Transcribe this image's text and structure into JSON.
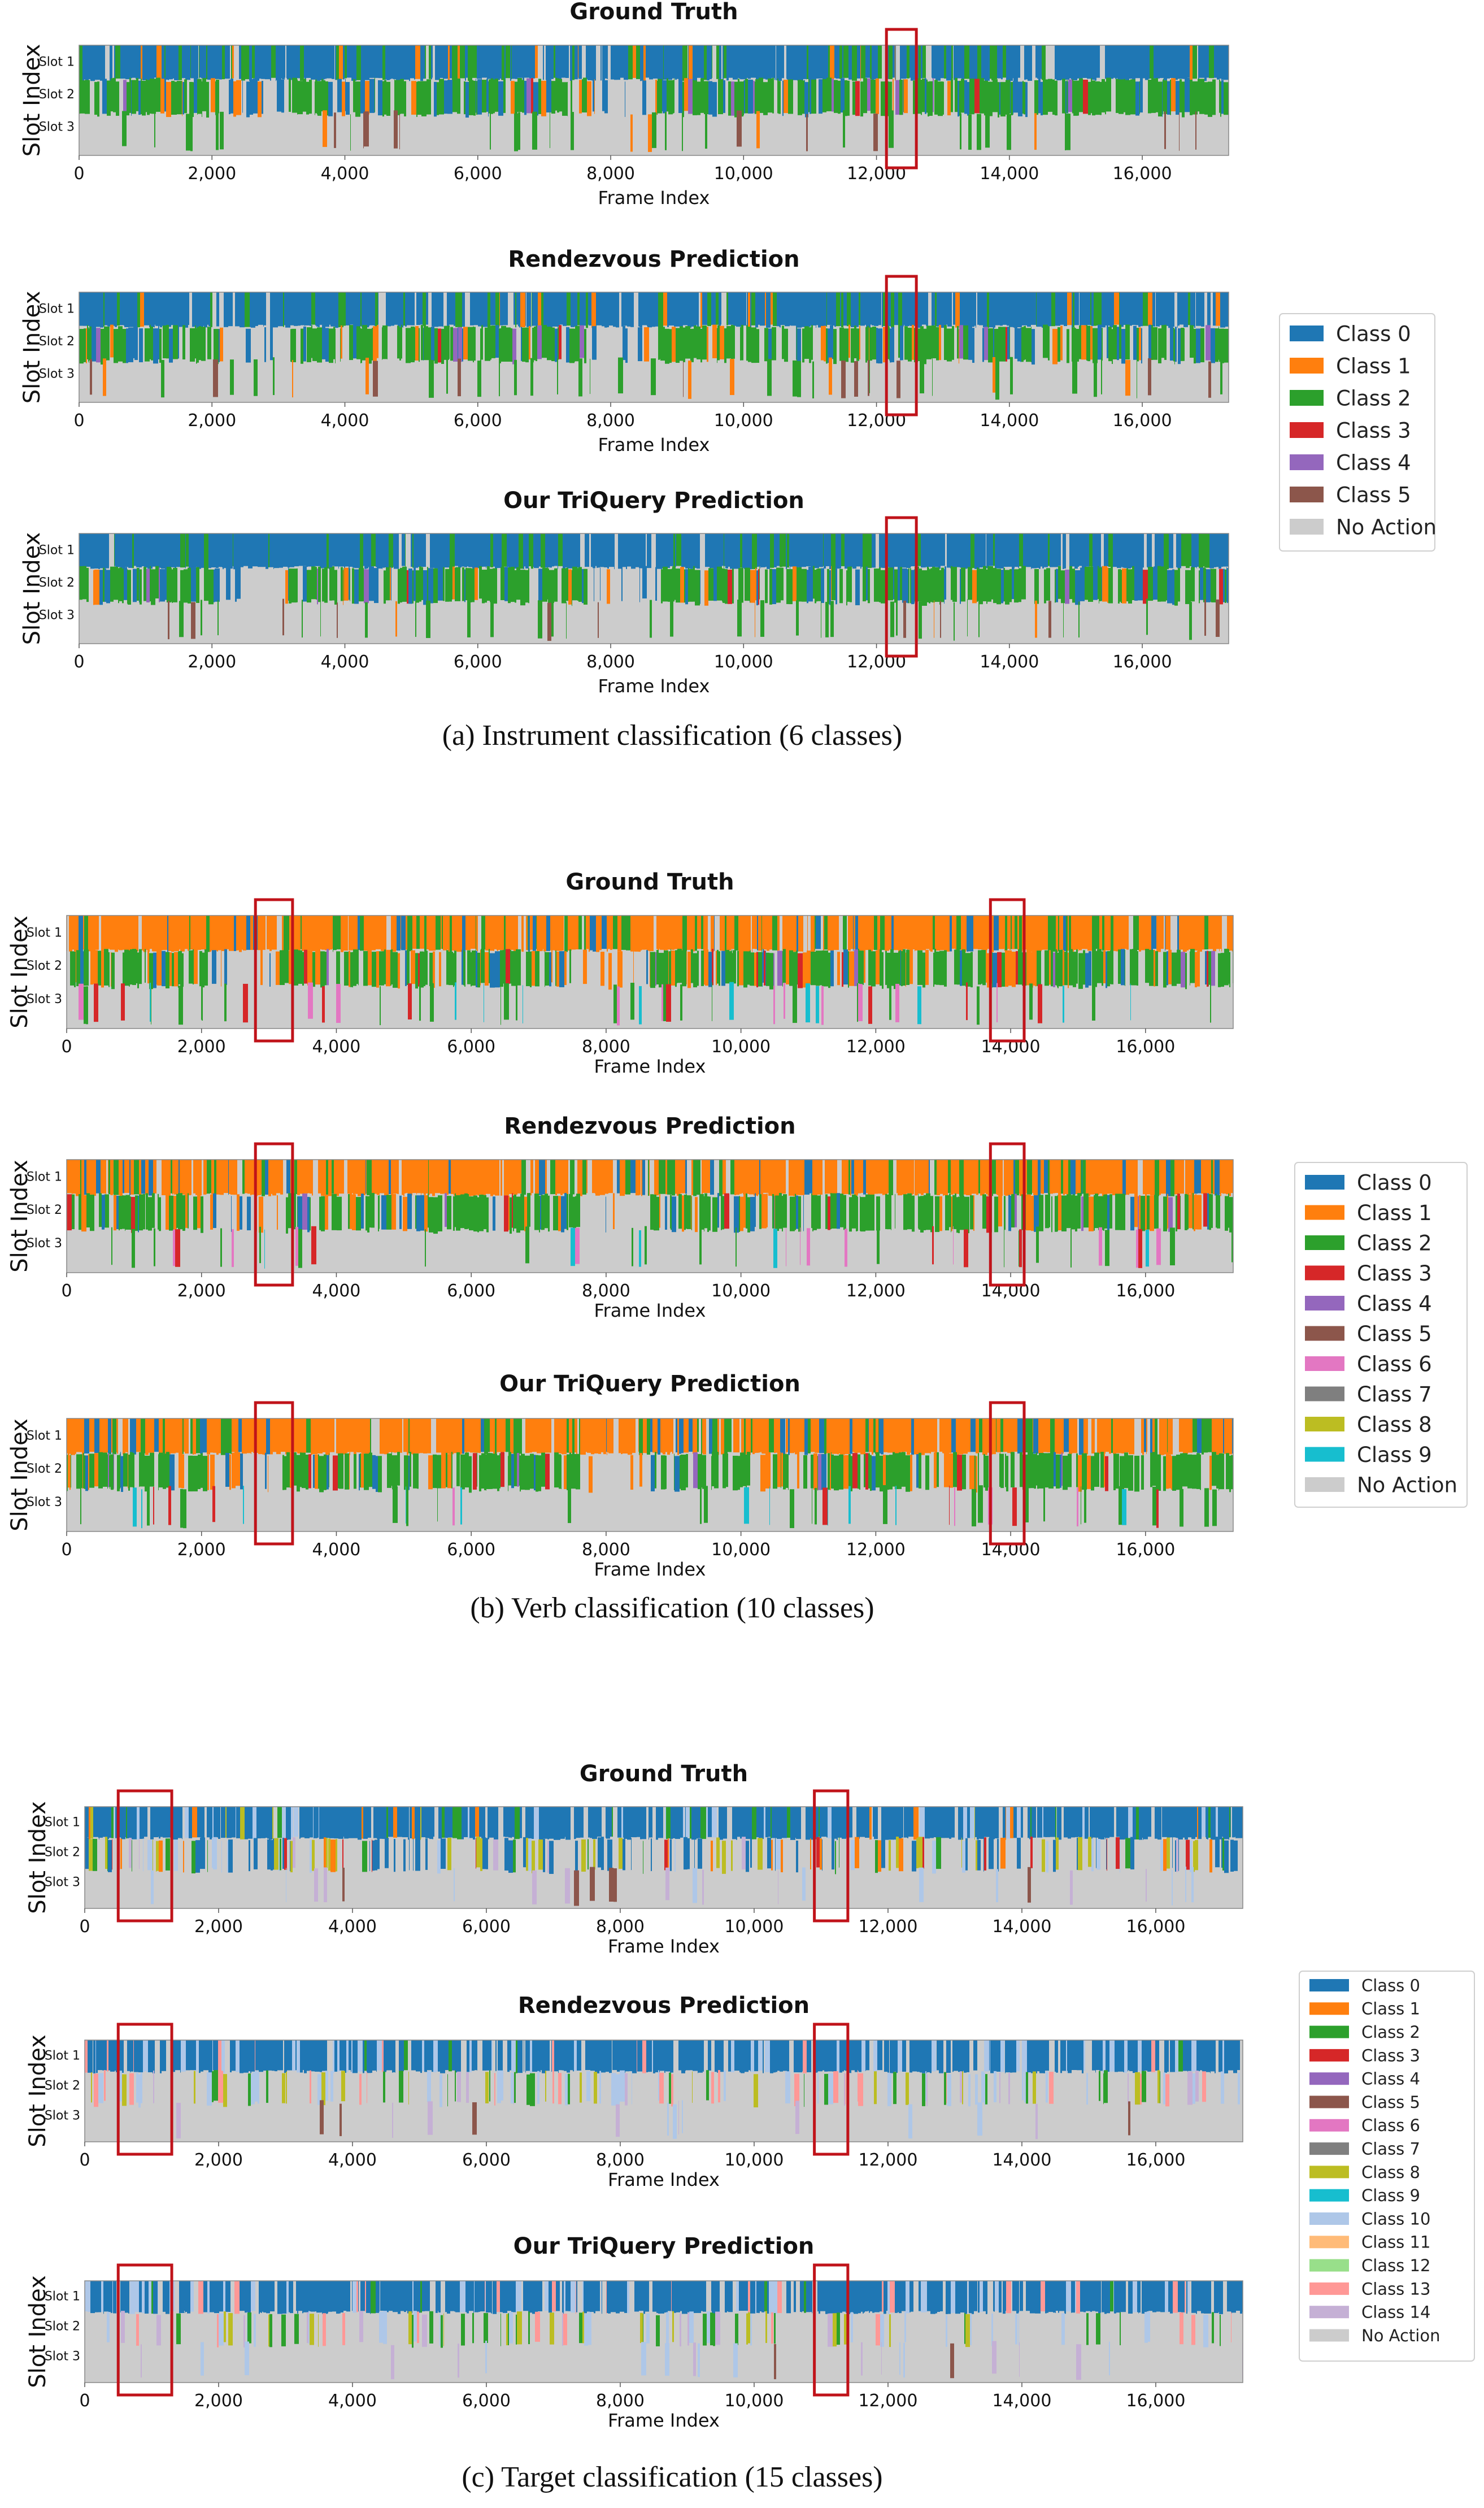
{
  "palette": {
    "class_0": "#1f77b4",
    "class_1": "#ff7f0e",
    "class_2": "#2ca02c",
    "class_3": "#d62728",
    "class_4": "#9467bd",
    "class_5": "#8c564b",
    "class_6": "#e377c2",
    "class_7": "#7f7f7f",
    "class_8": "#bcbd22",
    "class_9": "#17becf",
    "class_10": "#aec7e8",
    "class_11": "#ffbb78",
    "class_12": "#98df8a",
    "class_13": "#ff9896",
    "class_14": "#c5b0d5",
    "no_action": "#cccccc",
    "highlight": "#c0131a"
  },
  "chart_data": [
    {
      "type": "heatmap",
      "group": "instrument",
      "caption": "(a) Instrument classification (6 classes)",
      "legend": [
        "Class 0",
        "Class 1",
        "Class 2",
        "Class 3",
        "Class 4",
        "Class 5",
        "No Action"
      ],
      "legend_placement": "right",
      "xlabel": "Frame Index",
      "ylabel": "Slot Index",
      "y_categories": [
        "Slot 1",
        "Slot 2",
        "Slot 3"
      ],
      "x_range": [
        0,
        17300
      ],
      "x_ticks": [
        "0",
        "2,000",
        "4,000",
        "6,000",
        "8,000",
        "10,000",
        "12,000",
        "14,000",
        "16,000"
      ],
      "highlight_frames": [
        [
          12150,
          12600
        ]
      ],
      "panels": [
        {
          "title": "Ground Truth",
          "profile": "gt"
        },
        {
          "title": "Rendezvous Prediction",
          "profile": "pred"
        },
        {
          "title": "Our TriQuery Prediction",
          "profile": "ours"
        }
      ]
    },
    {
      "type": "heatmap",
      "group": "verb",
      "caption": "(b) Verb classification (10 classes)",
      "legend": [
        "Class 0",
        "Class 1",
        "Class 2",
        "Class 3",
        "Class 4",
        "Class 5",
        "Class 6",
        "Class 7",
        "Class 8",
        "Class 9",
        "No Action"
      ],
      "legend_placement": "right",
      "xlabel": "Frame Index",
      "ylabel": "Slot Index",
      "y_categories": [
        "Slot 1",
        "Slot 2",
        "Slot 3"
      ],
      "x_range": [
        0,
        17300
      ],
      "x_ticks": [
        "0",
        "2,000",
        "4,000",
        "6,000",
        "8,000",
        "10,000",
        "12,000",
        "14,000",
        "16,000"
      ],
      "highlight_frames": [
        [
          2800,
          3350
        ],
        [
          13700,
          14200
        ]
      ],
      "panels": [
        {
          "title": "Ground Truth",
          "profile": "gt"
        },
        {
          "title": "Rendezvous Prediction",
          "profile": "pred"
        },
        {
          "title": "Our TriQuery Prediction",
          "profile": "ours"
        }
      ]
    },
    {
      "type": "heatmap",
      "group": "target",
      "caption": "(c) Target classification (15 classes)",
      "legend": [
        "Class 0",
        "Class 1",
        "Class 2",
        "Class 3",
        "Class 4",
        "Class 5",
        "Class 6",
        "Class 7",
        "Class 8",
        "Class 9",
        "Class 10",
        "Class 11",
        "Class 12",
        "Class 13",
        "Class 14",
        "No Action"
      ],
      "legend_placement": "right",
      "xlabel": "Frame Index",
      "ylabel": "Slot Index",
      "y_categories": [
        "Slot 1",
        "Slot 2",
        "Slot 3"
      ],
      "x_range": [
        0,
        17300
      ],
      "x_ticks": [
        "0",
        "2,000",
        "4,000",
        "6,000",
        "8,000",
        "10,000",
        "12,000",
        "14,000",
        "16,000"
      ],
      "highlight_frames": [
        [
          500,
          1300
        ],
        [
          10900,
          11400
        ]
      ],
      "panels": [
        {
          "title": "Ground Truth",
          "profile": "gt"
        },
        {
          "title": "Rendezvous Prediction",
          "profile": "pred"
        },
        {
          "title": "Our TriQuery Prediction",
          "profile": "ours"
        }
      ]
    }
  ]
}
